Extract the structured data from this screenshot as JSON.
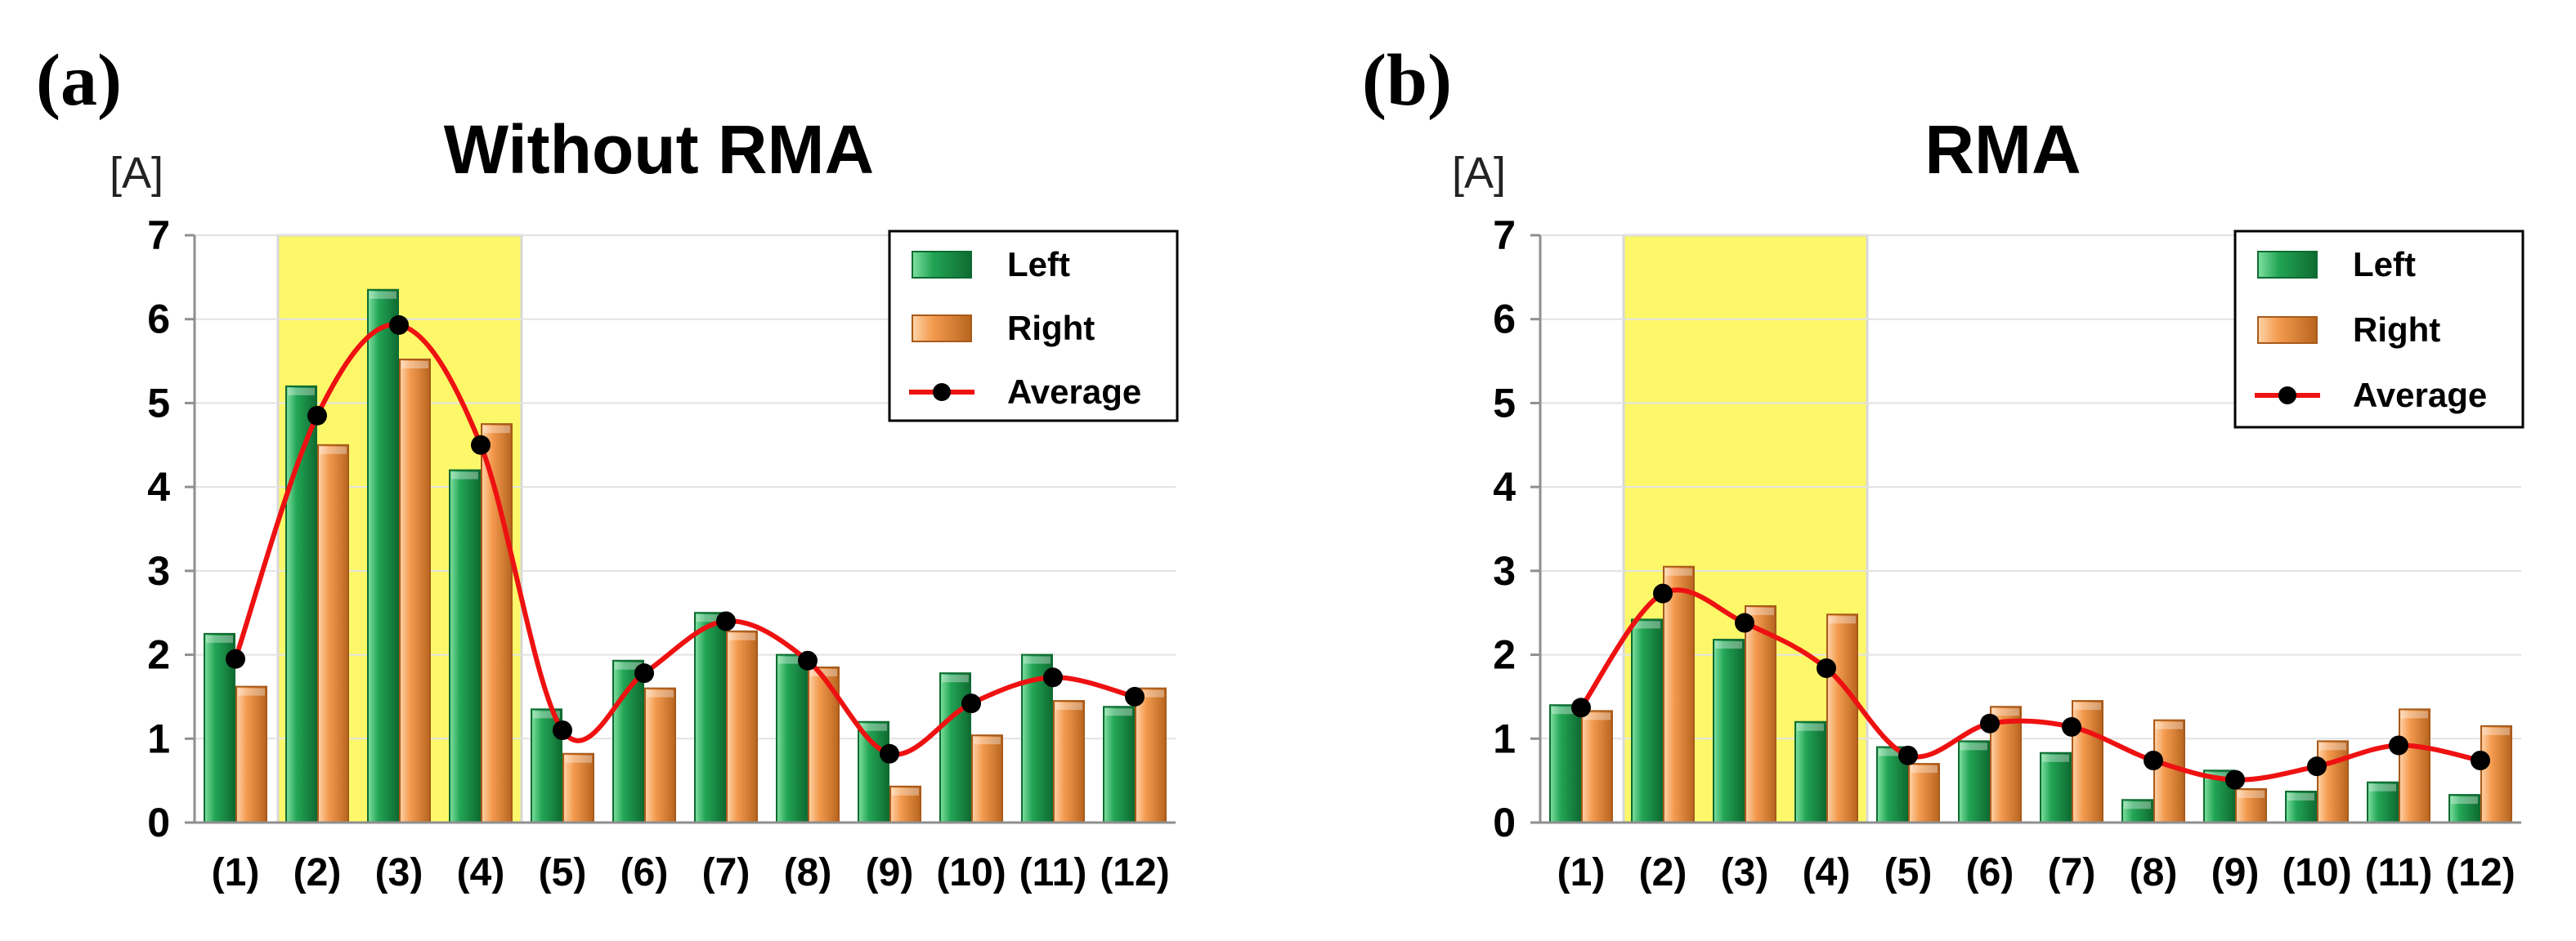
{
  "panel_labels": [
    "(a)",
    "(b)"
  ],
  "colors": {
    "left": "#22a555",
    "left_dark": "#0f6b31",
    "right": "#f39a4e",
    "right_dark": "#a85a1a",
    "average_line": "#ee1111",
    "average_marker": "#000000",
    "highlight": "#fdf86a"
  },
  "chart_data": [
    {
      "type": "bar",
      "title": "Without RMA",
      "unit": "[A]",
      "categories": [
        "(1)",
        "(2)",
        "(3)",
        "(4)",
        "(5)",
        "(6)",
        "(7)",
        "(8)",
        "(9)",
        "(10)",
        "(11)",
        "(12)"
      ],
      "yticks": [
        "0",
        "1",
        "2",
        "3",
        "4",
        "5",
        "6",
        "7"
      ],
      "ylim": [
        0,
        7
      ],
      "highlight_categories": [
        "(2)",
        "(3)",
        "(4)"
      ],
      "legend_position": "top-right",
      "series": [
        {
          "name": "Left",
          "kind": "bar",
          "values": [
            2.25,
            5.2,
            6.35,
            4.2,
            1.35,
            1.93,
            2.5,
            2.0,
            1.2,
            1.78,
            2.0,
            1.38
          ]
        },
        {
          "name": "Right",
          "kind": "bar",
          "values": [
            1.62,
            4.5,
            5.52,
            4.75,
            0.82,
            1.6,
            2.28,
            1.85,
            0.43,
            1.04,
            1.45,
            1.6
          ]
        },
        {
          "name": "Average",
          "kind": "line",
          "values": [
            1.95,
            4.85,
            5.93,
            4.5,
            1.1,
            1.78,
            2.4,
            1.93,
            0.82,
            1.42,
            1.73,
            1.5
          ]
        }
      ]
    },
    {
      "type": "bar",
      "title": "RMA",
      "unit": "[A]",
      "categories": [
        "(1)",
        "(2)",
        "(3)",
        "(4)",
        "(5)",
        "(6)",
        "(7)",
        "(8)",
        "(9)",
        "(10)",
        "(11)",
        "(12)"
      ],
      "yticks": [
        "0",
        "1",
        "2",
        "3",
        "4",
        "5",
        "6",
        "7"
      ],
      "ylim": [
        0,
        7
      ],
      "highlight_categories": [
        "(2)",
        "(3)",
        "(4)"
      ],
      "legend_position": "top-right",
      "series": [
        {
          "name": "Left",
          "kind": "bar",
          "values": [
            1.4,
            2.42,
            2.18,
            1.2,
            0.9,
            0.97,
            0.83,
            0.27,
            0.62,
            0.37,
            0.48,
            0.33
          ]
        },
        {
          "name": "Right",
          "kind": "bar",
          "values": [
            1.33,
            3.05,
            2.58,
            2.48,
            0.7,
            1.38,
            1.45,
            1.22,
            0.4,
            0.97,
            1.35,
            1.15
          ]
        },
        {
          "name": "Average",
          "kind": "line",
          "values": [
            1.37,
            2.73,
            2.38,
            1.84,
            0.8,
            1.18,
            1.14,
            0.74,
            0.51,
            0.67,
            0.92,
            0.74
          ]
        }
      ]
    }
  ]
}
